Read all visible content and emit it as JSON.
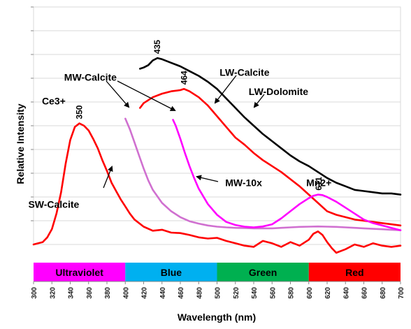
{
  "chart_data": {
    "type": "line",
    "xlabel": "Wavelength (nm)",
    "ylabel": "Relative Intensity",
    "xlim": [
      300,
      700
    ],
    "ylim": [
      0,
      10
    ],
    "x_ticks": [
      300,
      320,
      340,
      360,
      380,
      400,
      420,
      440,
      460,
      480,
      500,
      520,
      540,
      560,
      580,
      600,
      620,
      640,
      660,
      680,
      700
    ],
    "y_tick_labels_shown": false,
    "grid": "horizontal",
    "bands": [
      {
        "label": "Ultraviolet",
        "from": 300,
        "to": 400,
        "color": "#ff00ff"
      },
      {
        "label": "Blue",
        "from": 400,
        "to": 500,
        "color": "#00b0f0"
      },
      {
        "label": "Green",
        "from": 500,
        "to": 600,
        "color": "#00b050"
      },
      {
        "label": "Red",
        "from": 600,
        "to": 700,
        "color": "#ff0000"
      }
    ],
    "series": [
      {
        "name": "LW-Dolomite",
        "color": "#000000",
        "x": [
          416,
          420,
          425,
          430,
          435,
          440,
          450,
          460,
          470,
          480,
          490,
          500,
          510,
          520,
          530,
          540,
          550,
          560,
          570,
          580,
          590,
          600,
          610,
          620,
          630,
          640,
          650,
          660,
          670,
          680,
          690,
          700
        ],
        "y": [
          7.4,
          7.45,
          7.55,
          7.75,
          7.85,
          7.8,
          7.65,
          7.5,
          7.3,
          7.1,
          6.85,
          6.55,
          6.15,
          5.75,
          5.35,
          5.0,
          4.65,
          4.35,
          4.05,
          3.75,
          3.5,
          3.3,
          3.05,
          2.8,
          2.6,
          2.45,
          2.3,
          2.25,
          2.2,
          2.15,
          2.15,
          2.1
        ]
      },
      {
        "name": "LW-Calcite",
        "color": "#ff0000",
        "x": [
          416,
          420,
          430,
          440,
          450,
          460,
          464,
          470,
          480,
          490,
          500,
          510,
          520,
          530,
          540,
          550,
          560,
          570,
          580,
          590,
          600,
          610,
          620,
          630,
          640,
          650,
          660,
          670,
          680,
          690,
          700
        ],
        "y": [
          5.75,
          5.95,
          6.2,
          6.35,
          6.45,
          6.5,
          6.55,
          6.45,
          6.2,
          5.85,
          5.4,
          4.95,
          4.5,
          4.2,
          3.85,
          3.55,
          3.3,
          3.05,
          2.75,
          2.45,
          2.1,
          1.75,
          1.4,
          1.25,
          1.15,
          1.05,
          1.0,
          0.95,
          0.9,
          0.85,
          0.8
        ]
      },
      {
        "name": "MW-Calcite",
        "color": "#d070d0",
        "x": [
          400,
          405,
          410,
          415,
          420,
          425,
          430,
          440,
          450,
          460,
          470,
          480,
          490,
          500,
          510,
          520,
          530,
          540,
          550,
          560,
          570,
          580,
          590,
          600,
          610,
          620,
          630,
          640,
          650,
          660,
          670,
          680,
          690,
          700
        ],
        "y": [
          5.3,
          4.85,
          4.3,
          3.75,
          3.2,
          2.7,
          2.3,
          1.75,
          1.4,
          1.15,
          0.98,
          0.88,
          0.8,
          0.75,
          0.72,
          0.7,
          0.69,
          0.68,
          0.68,
          0.68,
          0.7,
          0.72,
          0.74,
          0.75,
          0.76,
          0.75,
          0.74,
          0.72,
          0.7,
          0.68,
          0.66,
          0.64,
          0.62,
          0.6
        ]
      },
      {
        "name": "MW-10x",
        "color": "#ff00ff",
        "x": [
          452,
          455,
          460,
          465,
          470,
          475,
          480,
          490,
          500,
          510,
          520,
          530,
          540,
          550,
          560,
          570,
          580,
          590,
          600,
          605,
          610,
          615,
          620,
          630,
          640,
          650,
          660,
          670,
          680,
          690,
          700
        ],
        "y": [
          5.25,
          5.0,
          4.45,
          3.85,
          3.3,
          2.8,
          2.35,
          1.7,
          1.25,
          0.95,
          0.82,
          0.75,
          0.72,
          0.76,
          0.85,
          1.1,
          1.4,
          1.7,
          1.95,
          2.05,
          2.1,
          2.08,
          2.0,
          1.8,
          1.55,
          1.3,
          1.05,
          0.9,
          0.8,
          0.7,
          0.6
        ]
      },
      {
        "name": "SW-Calcite",
        "color": "#ff0000",
        "x": [
          300,
          305,
          310,
          315,
          320,
          325,
          330,
          335,
          340,
          345,
          350,
          355,
          360,
          365,
          370,
          375,
          380,
          385,
          390,
          395,
          400,
          405,
          410,
          420,
          430,
          440,
          450,
          460,
          470,
          480,
          490,
          500,
          510,
          520,
          530,
          540,
          550,
          560,
          570,
          580,
          590,
          600,
          605,
          610,
          615,
          620,
          625,
          630,
          640,
          650,
          660,
          670,
          680,
          690,
          700
        ],
        "y": [
          0.0,
          0.05,
          0.1,
          0.3,
          0.65,
          1.3,
          2.2,
          3.4,
          4.4,
          4.95,
          5.1,
          5.0,
          4.8,
          4.45,
          4.05,
          3.55,
          3.1,
          2.6,
          2.25,
          1.9,
          1.6,
          1.3,
          1.05,
          0.75,
          0.58,
          0.62,
          0.5,
          0.48,
          0.4,
          0.3,
          0.25,
          0.28,
          0.15,
          0.05,
          -0.05,
          -0.1,
          0.15,
          0.05,
          -0.1,
          0.1,
          -0.05,
          0.2,
          0.45,
          0.55,
          0.4,
          0.1,
          -0.15,
          -0.35,
          -0.2,
          0.0,
          -0.1,
          0.05,
          -0.05,
          -0.1,
          -0.05
        ]
      }
    ],
    "annotations": [
      {
        "text": "Ce3+",
        "x": 322,
        "y": 5.9
      },
      {
        "text": "MW-Calcite",
        "x": 362,
        "y": 6.9
      },
      {
        "text": "LW-Calcite",
        "x": 530,
        "y": 7.1
      },
      {
        "text": "LW-Dolomite",
        "x": 567,
        "y": 6.3
      },
      {
        "text": "MW-10x",
        "x": 529,
        "y": 2.45
      },
      {
        "text": "Mn2+",
        "x": 611,
        "y": 2.45
      },
      {
        "text": "SW-Calcite",
        "x": 322,
        "y": 1.55
      }
    ],
    "peak_labels": [
      {
        "text": "350",
        "x": 350,
        "y": 5.1
      },
      {
        "text": "435",
        "x": 435,
        "y": 7.85
      },
      {
        "text": "464",
        "x": 464,
        "y": 6.55
      },
      {
        "text": "611",
        "x": 611,
        "y": 2.1
      }
    ]
  }
}
